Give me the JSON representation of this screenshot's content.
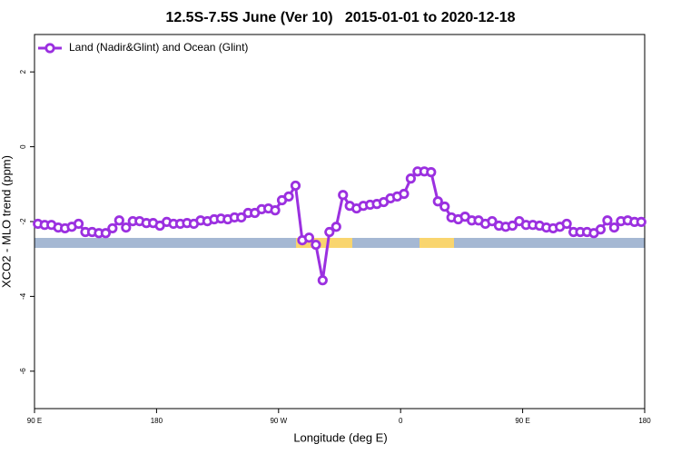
{
  "chart_data": {
    "type": "line",
    "title": "12.5S-7.5S June (Ver 10)   2015-01-01 to 2020-12-18",
    "xlabel": "Longitude (deg E)",
    "ylabel": "XCO2 - MLO trend (ppm)",
    "legend": "top-left",
    "xlim": [
      90,
      540
    ],
    "xticks": [
      {
        "value": 90,
        "label": "90 E"
      },
      180,
      {
        "value": 270,
        "label": "90 W"
      },
      {
        "value": 360,
        "label": "0"
      },
      {
        "value": 450,
        "label": "90 E"
      },
      {
        "value": 540,
        "label": "180"
      }
    ],
    "ylim": [
      -7,
      3
    ],
    "yticks": [
      2,
      0,
      -2,
      -4,
      -6
    ],
    "x": [
      92.5,
      97.5,
      102.5,
      107.5,
      112.5,
      117.5,
      122.5,
      127.5,
      132.5,
      137.5,
      142.5,
      147.5,
      152.5,
      157.5,
      162.5,
      167.5,
      172.5,
      177.5,
      182.5,
      187.5,
      192.5,
      197.5,
      202.5,
      207.5,
      212.5,
      217.5,
      222.5,
      227.5,
      232.5,
      237.5,
      242.5,
      247.5,
      252.5,
      257.5,
      262.5,
      267.5,
      272.5,
      277.5,
      282.5,
      287.5,
      292.5,
      297.5,
      302.5,
      307.5,
      312.5,
      317.5,
      322.5,
      327.5,
      332.5,
      337.5,
      342.5,
      347.5,
      352.5,
      357.5,
      362.5,
      367.5,
      372.5,
      377.5,
      382.5,
      387.5,
      392.5,
      397.5,
      402.5,
      407.5,
      412.5,
      417.5,
      422.5,
      427.5,
      432.5,
      437.5,
      442.5,
      447.5,
      452.5,
      457.5,
      462.5,
      467.5,
      472.5,
      477.5,
      482.5,
      487.5,
      492.5,
      497.5,
      502.5,
      507.5,
      512.5,
      517.5,
      522.5,
      527.5,
      532.5,
      537.5
    ],
    "series": [
      {
        "name": "Land (Nadir&Glint) and Ocean (Glint)",
        "color": "#9b30e0",
        "values": [
          -2.06,
          -2.09,
          -2.09,
          -2.16,
          -2.18,
          -2.14,
          -2.06,
          -2.28,
          -2.28,
          -2.31,
          -2.31,
          -2.18,
          -1.97,
          -2.16,
          -1.99,
          -1.99,
          -2.04,
          -2.04,
          -2.11,
          -2.01,
          -2.06,
          -2.06,
          -2.04,
          -2.06,
          -1.97,
          -1.99,
          -1.94,
          -1.92,
          -1.94,
          -1.89,
          -1.89,
          -1.77,
          -1.77,
          -1.67,
          -1.65,
          -1.7,
          -1.43,
          -1.33,
          -1.04,
          -2.5,
          -2.43,
          -2.62,
          -3.57,
          -2.28,
          -2.14,
          -1.29,
          -1.58,
          -1.65,
          -1.58,
          -1.55,
          -1.53,
          -1.48,
          -1.38,
          -1.33,
          -1.26,
          -0.85,
          -0.66,
          -0.66,
          -0.68,
          -1.46,
          -1.6,
          -1.89,
          -1.94,
          -1.87,
          -1.97,
          -1.97,
          -2.06,
          -1.99,
          -2.11,
          -2.14,
          -2.11,
          -1.99,
          -2.09,
          -2.09,
          -2.11,
          -2.16,
          -2.18,
          -2.14,
          -2.06,
          -2.28,
          -2.28,
          -2.28,
          -2.31,
          -2.21,
          -1.97,
          -2.16,
          -1.99,
          -1.97,
          -2.01,
          -2.01
        ]
      }
    ]
  }
}
